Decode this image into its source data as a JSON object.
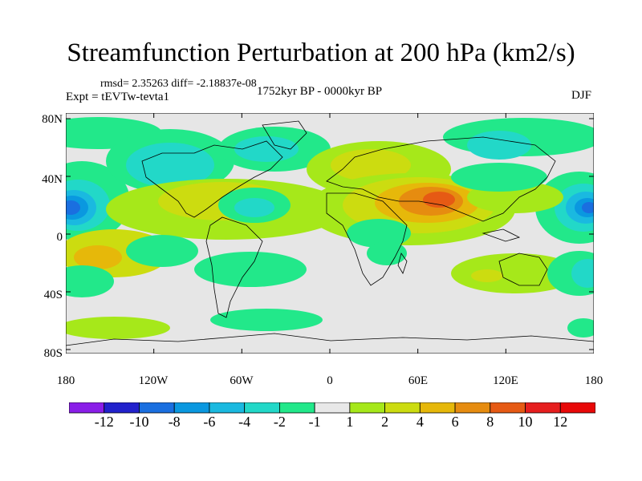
{
  "title": "Streamfunction Perturbation at 200 hPa (km2/s)",
  "stats": "rmsd= 2.35263  diff= -2.18837e-08",
  "experiment": "Expt = tEVTw-tevta1",
  "period": "1752kyr BP - 0000kyr BP",
  "season": "DJF",
  "lat_ticks": [
    "80N",
    "40N",
    "0",
    "40S",
    "80S"
  ],
  "lon_ticks": [
    "180",
    "120W",
    "60W",
    "0",
    "60E",
    "120E",
    "180"
  ],
  "colorbar": {
    "labels": [
      "-12",
      "-10",
      "-8",
      "-6",
      "-4",
      "-2",
      "-1",
      "1",
      "2",
      "4",
      "6",
      "8",
      "10",
      "12"
    ],
    "colors": [
      "#8a1ee8",
      "#2222cc",
      "#1a6fe0",
      "#0a98e0",
      "#1ab9e0",
      "#22d8c8",
      "#22e88a",
      "#e8e8e8",
      "#a6e81a",
      "#ccdc10",
      "#e6b80a",
      "#e68c10",
      "#e65a14",
      "#e61e1e",
      "#e80808"
    ]
  },
  "map": {
    "background": "#e6e6e6",
    "coast_color": "#000000"
  }
}
